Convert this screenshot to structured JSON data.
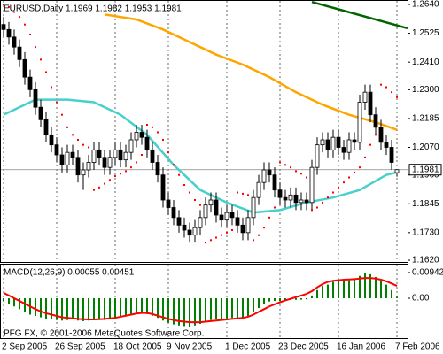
{
  "chart_data": {
    "type": "candlestick",
    "title": "EURUSD,Daily  1.1969 1.1982 1.1953 1.1981",
    "open": [
      1.256,
      1.254,
      1.251,
      1.247,
      1.242,
      1.235,
      1.23,
      1.223,
      1.218,
      1.212,
      1.208,
      1.204,
      1.2,
      1.205,
      1.203,
      1.196,
      1.198,
      1.201,
      1.206,
      1.203,
      1.199,
      1.203,
      1.206,
      1.202,
      1.205,
      1.21,
      1.213,
      1.211,
      1.206,
      1.201,
      1.196,
      1.186,
      1.183,
      1.179,
      1.176,
      1.174,
      1.172,
      1.175,
      1.179,
      1.184,
      1.186,
      1.18,
      1.178,
      1.181,
      1.179,
      1.176,
      1.173,
      1.179,
      1.187,
      1.193,
      1.198,
      1.196,
      1.19,
      1.187,
      1.186,
      1.188,
      1.185,
      1.186,
      1.185,
      1.199,
      1.208,
      1.21,
      1.206,
      1.211,
      1.207,
      1.205,
      1.21,
      1.209,
      1.225,
      1.229,
      1.22,
      1.215,
      1.209,
      1.207,
      1.1969
    ],
    "high": [
      1.259,
      1.257,
      1.254,
      1.25,
      1.245,
      1.238,
      1.233,
      1.226,
      1.221,
      1.215,
      1.211,
      1.207,
      1.208,
      1.208,
      1.206,
      1.201,
      1.204,
      1.209,
      1.209,
      1.206,
      1.206,
      1.209,
      1.209,
      1.208,
      1.213,
      1.216,
      1.216,
      1.214,
      1.209,
      1.204,
      1.199,
      1.189,
      1.186,
      1.182,
      1.179,
      1.177,
      1.178,
      1.182,
      1.187,
      1.189,
      1.189,
      1.183,
      1.184,
      1.184,
      1.182,
      1.179,
      1.182,
      1.19,
      1.196,
      1.201,
      1.201,
      1.199,
      1.193,
      1.19,
      1.191,
      1.191,
      1.189,
      1.189,
      1.202,
      1.211,
      1.213,
      1.213,
      1.214,
      1.214,
      1.21,
      1.213,
      1.213,
      1.228,
      1.232,
      1.232,
      1.223,
      1.218,
      1.212,
      1.21,
      1.1982
    ],
    "low": [
      1.251,
      1.248,
      1.244,
      1.239,
      1.232,
      1.227,
      1.22,
      1.215,
      1.209,
      1.205,
      1.201,
      1.197,
      1.197,
      1.2,
      1.193,
      1.19,
      1.195,
      1.198,
      1.2,
      1.196,
      1.196,
      1.2,
      1.199,
      1.199,
      1.202,
      1.207,
      1.208,
      1.203,
      1.198,
      1.193,
      1.183,
      1.18,
      1.176,
      1.173,
      1.171,
      1.169,
      1.169,
      1.172,
      1.176,
      1.181,
      1.177,
      1.175,
      1.175,
      1.176,
      1.173,
      1.17,
      1.17,
      1.176,
      1.184,
      1.19,
      1.193,
      1.187,
      1.184,
      1.183,
      1.183,
      1.182,
      1.182,
      1.182,
      1.182,
      1.196,
      1.205,
      1.203,
      1.203,
      1.204,
      1.202,
      1.202,
      1.206,
      1.206,
      1.222,
      1.217,
      1.212,
      1.206,
      1.204,
      1.198,
      1.1953
    ],
    "close": [
      1.254,
      1.251,
      1.247,
      1.242,
      1.235,
      1.23,
      1.223,
      1.218,
      1.212,
      1.208,
      1.204,
      1.2,
      1.205,
      1.203,
      1.196,
      1.198,
      1.201,
      1.206,
      1.203,
      1.199,
      1.203,
      1.206,
      1.202,
      1.205,
      1.21,
      1.213,
      1.211,
      1.206,
      1.201,
      1.196,
      1.186,
      1.183,
      1.179,
      1.176,
      1.174,
      1.172,
      1.175,
      1.179,
      1.184,
      1.186,
      1.18,
      1.178,
      1.181,
      1.179,
      1.176,
      1.173,
      1.179,
      1.187,
      1.193,
      1.198,
      1.196,
      1.19,
      1.187,
      1.186,
      1.188,
      1.185,
      1.186,
      1.185,
      1.199,
      1.208,
      1.21,
      1.206,
      1.211,
      1.207,
      1.205,
      1.21,
      1.209,
      1.225,
      1.229,
      1.22,
      1.215,
      1.209,
      1.207,
      1.201,
      1.1981
    ],
    "xlim": [
      -0.5,
      76
    ],
    "xticks": [
      {
        "value": 0,
        "label": "2 Sep 2005"
      },
      {
        "value": 10,
        "label": "26 Sep 2005"
      },
      {
        "value": 21,
        "label": "18 Oct 2005"
      },
      {
        "value": 31,
        "label": "9 Nov 2005"
      },
      {
        "value": 42,
        "label": "1 Dec 2005"
      },
      {
        "value": 52,
        "label": "23 Dec 2005"
      },
      {
        "value": 63,
        "label": "16 Jan 2006"
      },
      {
        "value": 74,
        "label": "7 Feb 2006"
      }
    ],
    "ylim": [
      1.162,
      1.264
    ],
    "yticks": [
      {
        "value": 1.264,
        "label": "1.2640"
      },
      1.2525,
      {
        "value": 1.241,
        "label": "1.2410"
      },
      {
        "value": 1.23,
        "label": "1.2300"
      },
      1.2185,
      {
        "value": 1.207,
        "label": "1.2070"
      },
      {
        "value": 1.196,
        "label": "1.1960"
      },
      1.1845,
      {
        "value": 1.173,
        "label": "1.1730"
      },
      {
        "value": 1.162,
        "label": "1.1620"
      }
    ],
    "lines": [
      {
        "color": "#ffa500",
        "x": [
          19,
          25,
          30,
          35,
          40,
          45,
          50,
          55,
          60,
          65,
          70,
          74
        ],
        "values": [
          1.26,
          1.258,
          1.254,
          1.249,
          1.244,
          1.24,
          1.235,
          1.229,
          1.224,
          1.22,
          1.217,
          1.214
        ]
      },
      {
        "color": "#48d1cc",
        "x": [
          0,
          6,
          12,
          17,
          22,
          27,
          32,
          37,
          42,
          47,
          52,
          57,
          62,
          67,
          72,
          74
        ],
        "values": [
          1.22,
          1.226,
          1.226,
          1.225,
          1.22,
          1.212,
          1.2,
          1.19,
          1.185,
          1.181,
          1.182,
          1.185,
          1.187,
          1.19,
          1.196,
          1.197
        ]
      },
      {
        "color": "#006400",
        "x": [
          58,
          76
        ],
        "values": [
          1.265,
          1.2545
        ]
      }
    ],
    "sar": {
      "color": "#ff0000",
      "values": [
        1.264,
        1.263,
        1.261,
        1.259,
        1.256,
        1.252,
        1.247,
        1.242,
        1.237,
        1.231,
        1.225,
        1.22,
        1.215,
        1.212,
        1.21,
        1.208,
        1.207,
        1.19,
        1.191,
        1.1925,
        1.194,
        1.1955,
        1.1965,
        1.1975,
        1.199,
        1.201,
        1.204,
        1.216,
        1.215,
        1.213,
        1.21,
        1.205,
        1.2,
        1.196,
        1.192,
        1.189,
        1.186,
        1.184,
        1.169,
        1.17,
        1.171,
        1.172,
        1.173,
        1.174,
        1.189,
        1.1885,
        1.188,
        1.17,
        1.172,
        1.175,
        1.179,
        1.183,
        1.201,
        1.2,
        1.199,
        1.1975,
        1.1965,
        1.195,
        1.182,
        1.183,
        1.185,
        1.187,
        1.189,
        1.191,
        1.193,
        1.195,
        1.197,
        1.199,
        1.203,
        1.208,
        1.212,
        1.232,
        1.231,
        1.229,
        1.227
      ]
    },
    "copyright": "PFG FX, © 2001-2006 MetaQuotes Software Corp.",
    "macd": {
      "title": "MACD(12,26,9) 0.00055 0.00451",
      "ylim": [
        -0.0146,
        0.012
      ],
      "yticks": [
        0.00942,
        {
          "value": 0,
          "label": "0.00"
        }
      ],
      "histogram": {
        "color": "#008000",
        "values": [
          -0.001,
          -0.002,
          -0.003,
          -0.004,
          -0.005,
          -0.006,
          -0.0065,
          -0.007,
          -0.0075,
          -0.0078,
          -0.008,
          -0.0082,
          -0.008,
          -0.0078,
          -0.0082,
          -0.0084,
          -0.0082,
          -0.0078,
          -0.0078,
          -0.008,
          -0.0078,
          -0.0072,
          -0.007,
          -0.0066,
          -0.006,
          -0.0055,
          -0.0055,
          -0.0058,
          -0.0064,
          -0.0072,
          -0.0082,
          -0.009,
          -0.0096,
          -0.01,
          -0.0102,
          -0.0104,
          -0.01,
          -0.0094,
          -0.0086,
          -0.008,
          -0.0078,
          -0.0078,
          -0.0074,
          -0.0072,
          -0.0074,
          -0.0076,
          -0.0068,
          -0.0052,
          -0.0036,
          -0.002,
          -0.0012,
          -0.001,
          -0.001,
          -0.0008,
          -0.0006,
          -0.0006,
          -0.0005,
          -0.0004,
          0.001,
          0.003,
          0.0045,
          0.005,
          0.006,
          0.0062,
          0.0062,
          0.0066,
          0.0068,
          0.0082,
          0.0092,
          0.0088,
          0.0078,
          0.0064,
          0.005,
          0.003,
          0.00055
        ]
      },
      "signal": {
        "color": "#ff0000",
        "values": [
          0.002,
          0.001,
          0.0,
          -0.001,
          -0.002,
          -0.003,
          -0.004,
          -0.0048,
          -0.0055,
          -0.006,
          -0.0065,
          -0.007,
          -0.0072,
          -0.0074,
          -0.0076,
          -0.0077,
          -0.0078,
          -0.0078,
          -0.0077,
          -0.0076,
          -0.0074,
          -0.0072,
          -0.0068,
          -0.0064,
          -0.006,
          -0.0056,
          -0.0054,
          -0.0054,
          -0.0058,
          -0.0064,
          -0.007,
          -0.0076,
          -0.008,
          -0.0084,
          -0.0086,
          -0.0088,
          -0.0088,
          -0.0088,
          -0.0086,
          -0.0084,
          -0.0082,
          -0.008,
          -0.0078,
          -0.0076,
          -0.0074,
          -0.0072,
          -0.0068,
          -0.006,
          -0.005,
          -0.004,
          -0.003,
          -0.0022,
          -0.0015,
          -0.0008,
          -0.0002,
          0.0004,
          0.001,
          0.0016,
          0.0026,
          0.004,
          0.0052,
          0.006,
          0.0064,
          0.0066,
          0.0068,
          0.0069,
          0.007,
          0.0072,
          0.0074,
          0.0074,
          0.0072,
          0.0068,
          0.0062,
          0.0054,
          0.00451
        ]
      }
    }
  }
}
